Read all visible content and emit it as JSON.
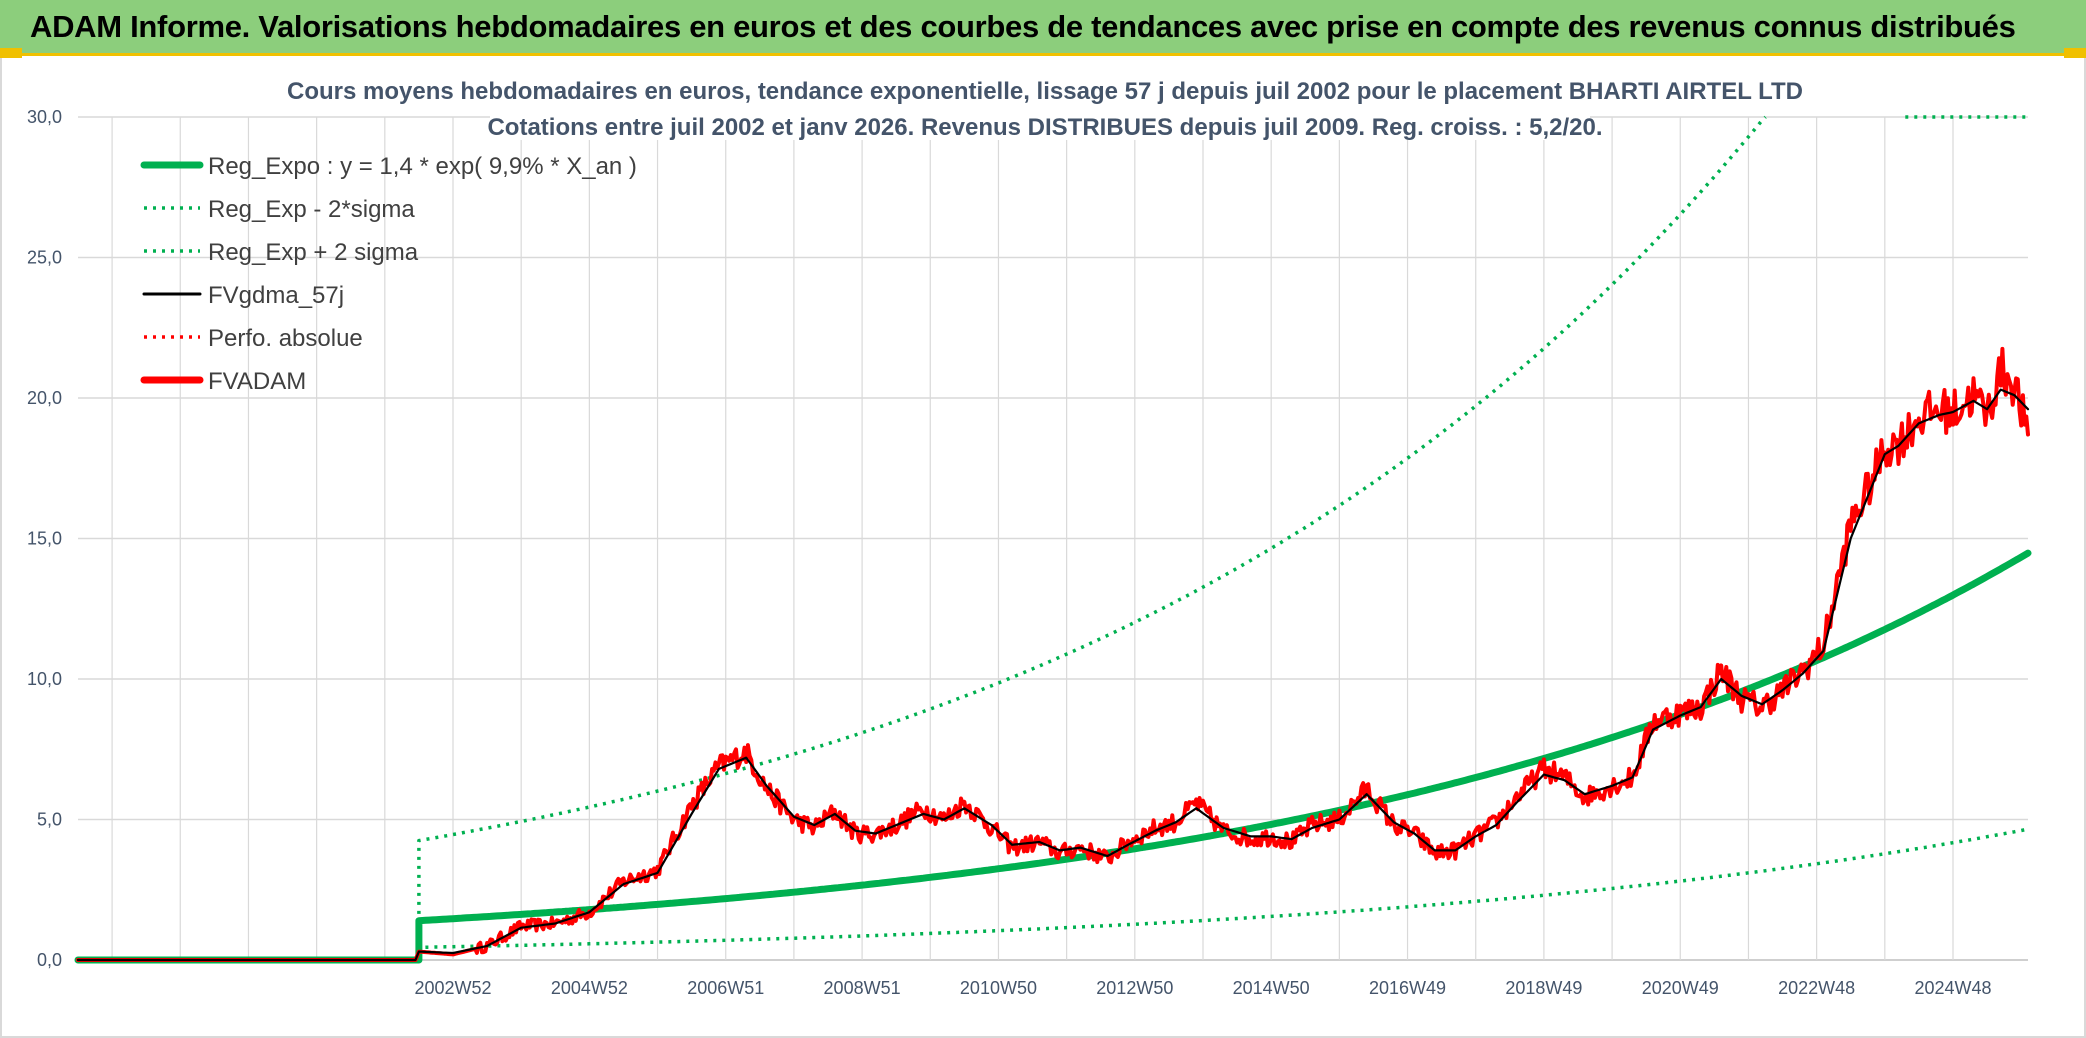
{
  "header": {
    "title": "ADAM Informe. Valorisations hebdomadaires en euros et des courbes de tendances avec prise en compte des revenus connus distribués"
  },
  "chart_data": {
    "type": "line",
    "title_line1": "Cours moyens hebdomadaires en euros, tendance exponentielle, lissage 57 j depuis juil 2002 pour le placement BHARTI AIRTEL LTD",
    "title_line2": "Cotations entre juil 2002 et janv 2026. Revenus DISTRIBUES depuis juil 2009. Reg. croiss. : 5,2/20.",
    "ylim": [
      0,
      30
    ],
    "xlim": [
      1997.5,
      2026.1
    ],
    "y_ticks": [
      "0,0",
      "5,0",
      "10,0",
      "15,0",
      "20,0",
      "25,0",
      "30,0"
    ],
    "x_tick_labels": [
      "2002W52",
      "2004W52",
      "2006W51",
      "2008W51",
      "2010W50",
      "2012W50",
      "2014W50",
      "2016W49",
      "2018W49",
      "2020W49",
      "2022W48",
      "2024W48"
    ],
    "x_tick_years": [
      2003.0,
      2005.0,
      2007.0,
      2009.0,
      2011.0,
      2013.0,
      2015.0,
      2017.0,
      2019.0,
      2021.0,
      2023.0,
      2025.0
    ],
    "start_year": 2002.5,
    "legend": [
      {
        "label": "Reg_Expo : y = 1,4 * exp( 9,9% *  X_an )",
        "color": "#00b050",
        "style": "solid-thick"
      },
      {
        "label": "Reg_Exp - 2*sigma",
        "color": "#00b050",
        "style": "dotted"
      },
      {
        "label": "Reg_Exp + 2 sigma",
        "color": "#00b050",
        "style": "dotted"
      },
      {
        "label": "FVgdma_57j",
        "color": "#000000",
        "style": "solid"
      },
      {
        "label": "Perfo. absolue",
        "color": "#ff0000",
        "style": "dotted"
      },
      {
        "label": "FVADAM",
        "color": "#ff0000",
        "style": "solid-thick"
      }
    ],
    "series": [
      {
        "name": "Reg_Expo",
        "a": 1.4,
        "rate": 0.099,
        "from": 2002.5,
        "color": "#00b050"
      },
      {
        "name": "Reg_Exp - 2*sigma",
        "a": 0.45,
        "rate": 0.099,
        "from": 2002.5,
        "color": "#00b050"
      },
      {
        "name": "Reg_Exp + 2 sigma",
        "a": 4.25,
        "rate": 0.099,
        "from": 2002.5,
        "color": "#00b050"
      },
      {
        "name": "FVADAM",
        "color": "#ff0000",
        "x": [
          1997.5,
          2002.45,
          2002.5,
          2003.0,
          2003.5,
          2004.0,
          2004.5,
          2005.0,
          2005.5,
          2006.0,
          2006.5,
          2006.9,
          2007.3,
          2007.6,
          2008.0,
          2008.3,
          2008.6,
          2008.9,
          2009.2,
          2009.5,
          2009.9,
          2010.2,
          2010.5,
          2010.9,
          2011.2,
          2011.6,
          2011.9,
          2012.2,
          2012.6,
          2012.9,
          2013.3,
          2013.6,
          2013.9,
          2014.3,
          2014.7,
          2015.0,
          2015.3,
          2015.6,
          2016.0,
          2016.4,
          2016.8,
          2017.1,
          2017.4,
          2017.7,
          2018.0,
          2018.3,
          2018.6,
          2019.0,
          2019.3,
          2019.6,
          2020.0,
          2020.3,
          2020.6,
          2021.0,
          2021.3,
          2021.6,
          2021.9,
          2022.2,
          2022.5,
          2022.8,
          2023.1,
          2023.5,
          2023.8,
          2024.0,
          2024.2,
          2024.5,
          2024.8,
          2025.0,
          2025.3,
          2025.5,
          2025.7,
          2025.9,
          2026.1
        ],
        "values": [
          0.0,
          0.0,
          0.3,
          0.2,
          0.5,
          1.2,
          1.3,
          1.7,
          2.8,
          3.2,
          5.5,
          6.9,
          7.4,
          6.1,
          5.0,
          4.7,
          5.3,
          4.5,
          4.5,
          4.8,
          5.4,
          5.0,
          5.6,
          4.7,
          4.0,
          4.2,
          3.8,
          4.0,
          3.6,
          4.2,
          4.7,
          4.9,
          5.6,
          4.6,
          4.3,
          4.4,
          4.2,
          4.8,
          5.0,
          6.1,
          4.8,
          4.5,
          3.8,
          3.9,
          4.4,
          4.9,
          5.8,
          6.8,
          6.5,
          5.8,
          6.2,
          6.5,
          8.5,
          8.8,
          9.0,
          10.3,
          9.3,
          9.0,
          9.6,
          10.3,
          11.2,
          15.5,
          17.0,
          18.2,
          18.4,
          19.3,
          19.6,
          19.5,
          20.1,
          19.4,
          21.0,
          20.5,
          18.7
        ]
      },
      {
        "name": "FVgdma_57j",
        "color": "#000000",
        "x": [
          1997.5,
          2002.45,
          2002.5,
          2003.0,
          2003.5,
          2004.0,
          2004.5,
          2005.0,
          2005.5,
          2006.0,
          2006.5,
          2006.9,
          2007.3,
          2007.6,
          2008.0,
          2008.3,
          2008.6,
          2008.9,
          2009.2,
          2009.5,
          2009.9,
          2010.2,
          2010.5,
          2010.9,
          2011.2,
          2011.6,
          2011.9,
          2012.2,
          2012.6,
          2012.9,
          2013.3,
          2013.6,
          2013.9,
          2014.3,
          2014.7,
          2015.0,
          2015.3,
          2015.6,
          2016.0,
          2016.4,
          2016.8,
          2017.1,
          2017.4,
          2017.7,
          2018.0,
          2018.3,
          2018.6,
          2019.0,
          2019.3,
          2019.6,
          2020.0,
          2020.3,
          2020.6,
          2021.0,
          2021.3,
          2021.6,
          2021.9,
          2022.2,
          2022.5,
          2022.8,
          2023.1,
          2023.5,
          2023.8,
          2024.0,
          2024.2,
          2024.5,
          2024.8,
          2025.0,
          2025.3,
          2025.5,
          2025.7,
          2025.9,
          2026.1
        ],
        "values": [
          0.0,
          0.0,
          0.3,
          0.25,
          0.5,
          1.15,
          1.3,
          1.7,
          2.7,
          3.1,
          5.2,
          6.8,
          7.2,
          6.2,
          5.1,
          4.8,
          5.2,
          4.6,
          4.5,
          4.8,
          5.2,
          5.0,
          5.4,
          4.8,
          4.1,
          4.2,
          3.9,
          4.0,
          3.7,
          4.1,
          4.6,
          4.9,
          5.4,
          4.7,
          4.4,
          4.4,
          4.3,
          4.7,
          5.0,
          5.9,
          4.9,
          4.5,
          3.9,
          3.9,
          4.4,
          4.8,
          5.6,
          6.6,
          6.4,
          5.9,
          6.2,
          6.5,
          8.2,
          8.7,
          9.0,
          10.0,
          9.4,
          9.1,
          9.6,
          10.2,
          11.0,
          15.0,
          16.8,
          18.0,
          18.3,
          19.1,
          19.4,
          19.5,
          19.9,
          19.6,
          20.3,
          20.1,
          19.6
        ]
      }
    ]
  }
}
